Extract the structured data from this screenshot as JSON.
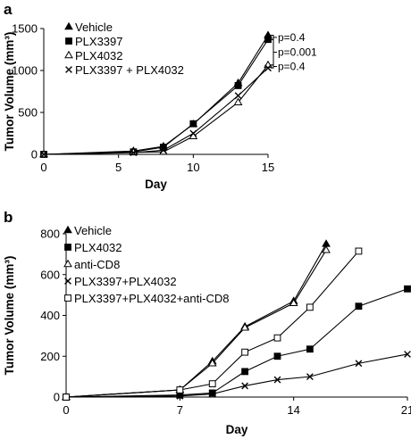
{
  "chart_data": [
    {
      "panel_label": "a",
      "type": "line",
      "xlabel": "Day",
      "ylabel": "Tumor Volume (mm³)",
      "xlim": [
        0,
        15
      ],
      "ylim": [
        0,
        1500
      ],
      "xticks": [
        0,
        5,
        10,
        15
      ],
      "yticks": [
        0,
        500,
        1000,
        1500
      ],
      "grid": false,
      "legend_position": "top-left",
      "x": [
        0,
        6,
        8,
        10,
        13,
        15
      ],
      "series": [
        {
          "name": "Vehicle",
          "marker": "filled-triangle",
          "values": [
            0,
            40,
            95,
            360,
            850,
            1420
          ]
        },
        {
          "name": "PLX3397",
          "marker": "filled-square",
          "values": [
            0,
            30,
            85,
            365,
            820,
            1370
          ]
        },
        {
          "name": "PLX4032",
          "marker": "open-triangle",
          "values": [
            0,
            25,
            30,
            215,
            620,
            1065
          ]
        },
        {
          "name": "PLX3397 + PLX4032",
          "marker": "cross",
          "values": [
            0,
            20,
            50,
            250,
            700,
            1030
          ]
        }
      ],
      "annotations": [
        "p=0.4",
        "p=0.001",
        "p=0.4"
      ]
    },
    {
      "panel_label": "b",
      "type": "line",
      "xlabel": "Day",
      "ylabel": "Tumor Volume (mm³)",
      "xlim": [
        0,
        21
      ],
      "ylim": [
        0,
        800
      ],
      "xticks": [
        0,
        7,
        14,
        21
      ],
      "yticks": [
        0,
        200,
        400,
        600,
        800
      ],
      "grid": false,
      "legend_position": "top-left",
      "series": [
        {
          "name": "Vehicle",
          "marker": "filled-triangle",
          "x": [
            0,
            7,
            9,
            11,
            14,
            16
          ],
          "values": [
            0,
            35,
            175,
            345,
            470,
            750
          ]
        },
        {
          "name": "PLX4032",
          "marker": "filled-square",
          "x": [
            0,
            7,
            9,
            11,
            13,
            15,
            18,
            21
          ],
          "values": [
            0,
            10,
            20,
            125,
            200,
            235,
            445,
            530
          ]
        },
        {
          "name": "anti-CD8",
          "marker": "open-triangle",
          "x": [
            0,
            7,
            9,
            11,
            14,
            16
          ],
          "values": [
            0,
            35,
            165,
            340,
            460,
            720
          ]
        },
        {
          "name": "PLX3397+PLX4032",
          "marker": "cross",
          "x": [
            0,
            7,
            9,
            11,
            13,
            15,
            18,
            21
          ],
          "values": [
            0,
            5,
            15,
            55,
            85,
            100,
            165,
            210
          ]
        },
        {
          "name": "PLX3397+PLX4032+anti-CD8",
          "marker": "open-square",
          "x": [
            0,
            7,
            9,
            11,
            13,
            15,
            18
          ],
          "values": [
            0,
            35,
            65,
            220,
            290,
            440,
            715
          ]
        }
      ]
    }
  ]
}
